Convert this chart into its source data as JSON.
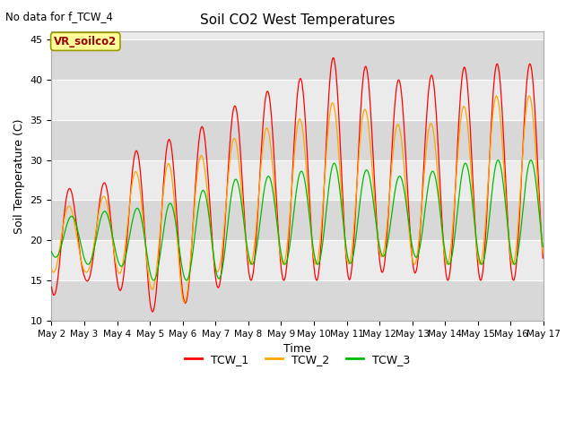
{
  "title": "Soil CO2 West Temperatures",
  "xlabel": "Time",
  "ylabel": "Soil Temperature (C)",
  "ylim": [
    10,
    46
  ],
  "yticks": [
    10,
    15,
    20,
    25,
    30,
    35,
    40,
    45
  ],
  "no_data_text": "No data for f_TCW_4",
  "annotation_text": "VR_soilco2",
  "legend": [
    "TCW_1",
    "TCW_2",
    "TCW_3"
  ],
  "colors": [
    "#FF0000",
    "#FFA500",
    "#00BB00"
  ],
  "background_color": "#ffffff",
  "plot_bg_color": "#ebebeb",
  "band_color": "#d8d8d8",
  "start_day": 2,
  "end_day": 17,
  "tcw1_base_min": [
    13,
    15,
    14,
    11,
    12,
    14,
    15,
    15,
    15,
    15,
    16,
    16,
    15,
    15,
    15
  ],
  "tcw1_base_max": [
    31,
    23,
    30,
    32,
    33,
    35,
    38,
    39,
    41,
    44,
    40,
    40,
    41,
    42,
    42
  ],
  "tcw2_base_min": [
    16,
    16,
    16,
    14,
    12,
    16,
    17,
    17,
    17,
    17,
    18,
    17,
    17,
    17,
    17
  ],
  "tcw2_base_max": [
    27,
    22,
    28,
    29,
    30,
    31,
    34,
    34,
    36,
    38,
    35,
    34,
    35,
    38,
    38
  ],
  "tcw3_base_min": [
    18,
    17,
    17,
    15,
    15,
    15,
    17,
    17,
    17,
    17,
    18,
    18,
    17,
    17,
    17
  ],
  "tcw3_base_max": [
    23,
    23,
    24,
    24,
    25,
    27,
    28,
    28,
    29,
    30,
    28,
    28,
    29,
    30,
    30
  ]
}
